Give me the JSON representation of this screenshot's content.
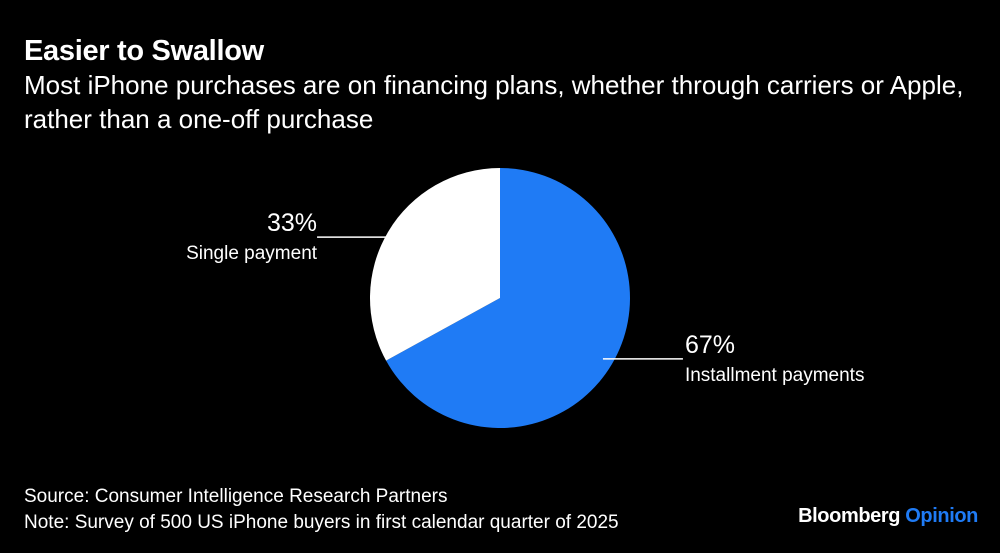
{
  "header": {
    "title": "Easier to Swallow",
    "subtitle": "Most iPhone purchases are on financing plans, whether through carriers or Apple, rather than a one-off purchase"
  },
  "chart_data": {
    "type": "pie",
    "slices": [
      {
        "label": "Installment payments",
        "value": 67,
        "value_label": "67%",
        "color": "#1f7bf5"
      },
      {
        "label": "Single payment",
        "value": 33,
        "value_label": "33%",
        "color": "#ffffff"
      }
    ],
    "start_angle": "12 o'clock",
    "direction": "clockwise"
  },
  "footer": {
    "source": "Source: Consumer Intelligence Research Partners",
    "note": "Note: Survey of 500 US iPhone buyers in first calendar quarter of 2025"
  },
  "brand": {
    "name": "Bloomberg",
    "section": "Opinion"
  },
  "colors": {
    "background": "#000000",
    "text": "#ffffff",
    "accent": "#1f7bf5"
  }
}
